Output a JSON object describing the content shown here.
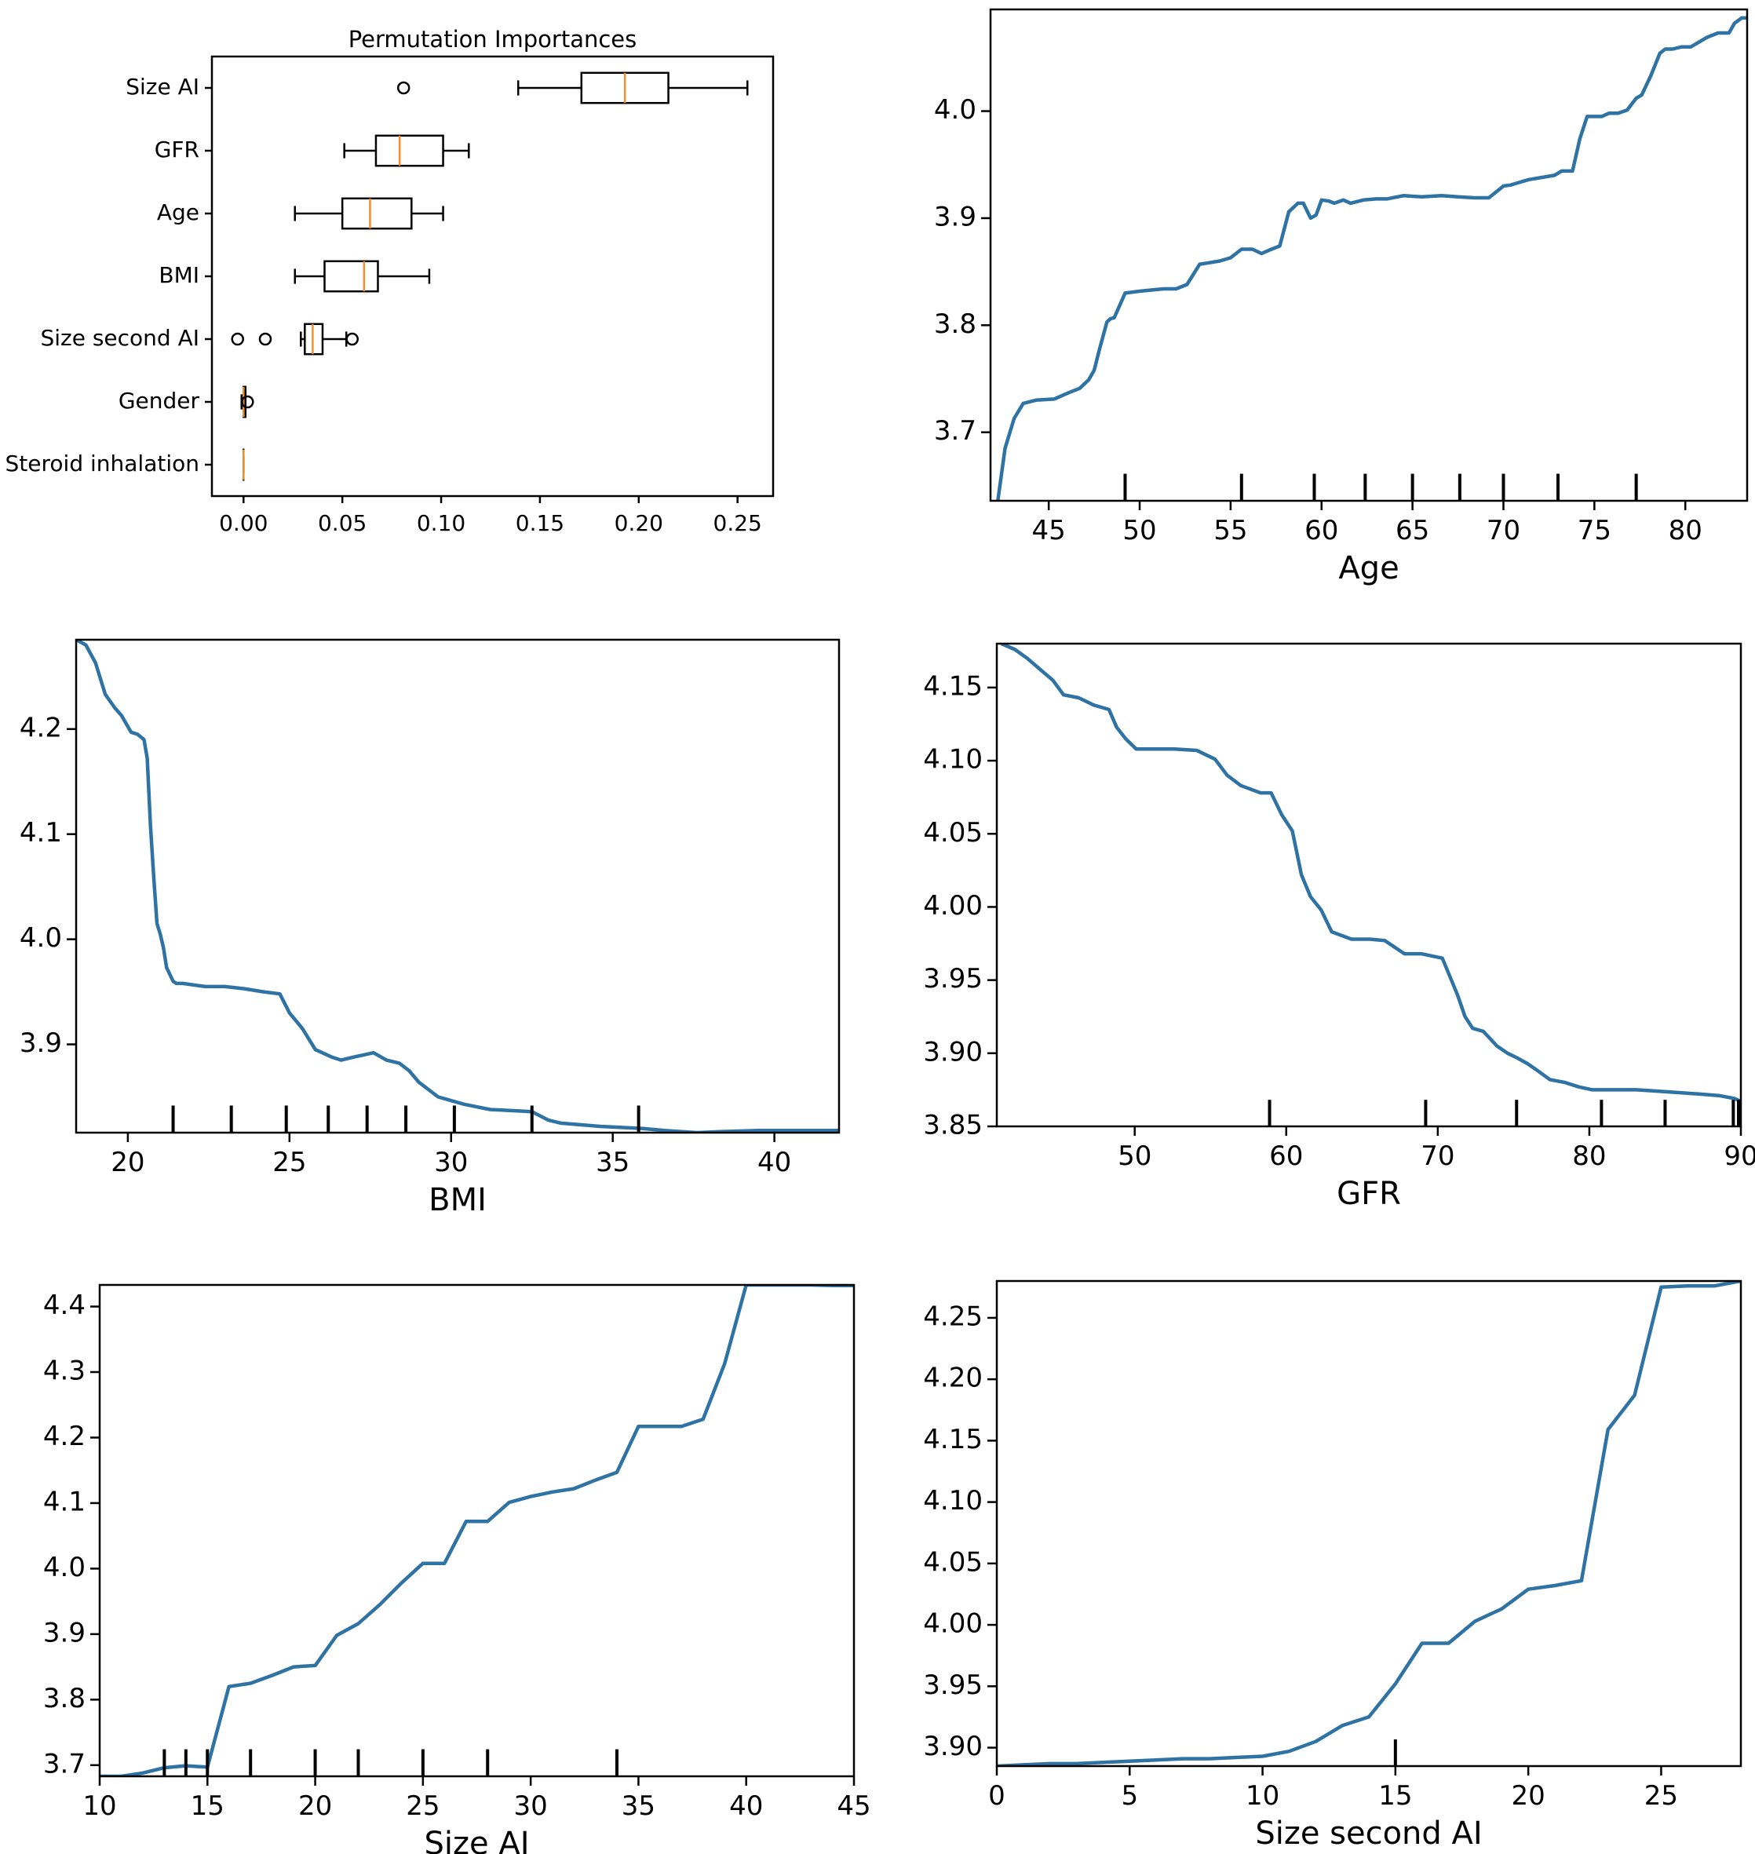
{
  "colors": {
    "line": "#2e73a4",
    "median": "#f28e2b",
    "axis": "#000000"
  },
  "chart_data": [
    {
      "type": "box",
      "title": "Permutation Importances",
      "categories": [
        "Size AI",
        "GFR",
        "Age",
        "BMI",
        "Size second AI",
        "Gender",
        "Steroid inhalation"
      ],
      "xlim": [
        -0.016,
        0.268
      ],
      "xticks": [
        "0.00",
        "0.05",
        "0.10",
        "0.15",
        "0.20",
        "0.25"
      ],
      "boxes": [
        {
          "label": "Size AI",
          "whisker_low": 0.139,
          "q1": 0.171,
          "median": 0.193,
          "q3": 0.215,
          "whisker_high": 0.255,
          "fliers": [
            0.081
          ]
        },
        {
          "label": "GFR",
          "whisker_low": 0.051,
          "q1": 0.067,
          "median": 0.079,
          "q3": 0.101,
          "whisker_high": 0.114,
          "fliers": []
        },
        {
          "label": "Age",
          "whisker_low": 0.026,
          "q1": 0.05,
          "median": 0.064,
          "q3": 0.085,
          "whisker_high": 0.101,
          "fliers": []
        },
        {
          "label": "BMI",
          "whisker_low": 0.026,
          "q1": 0.041,
          "median": 0.061,
          "q3": 0.068,
          "whisker_high": 0.094,
          "fliers": []
        },
        {
          "label": "Size second AI",
          "whisker_low": 0.029,
          "q1": 0.031,
          "median": 0.035,
          "q3": 0.04,
          "whisker_high": 0.052,
          "fliers": [
            -0.003,
            0.011,
            0.055
          ]
        },
        {
          "label": "Gender",
          "whisker_low": -0.001,
          "q1": 0.0,
          "median": 0.0,
          "q3": 0.001,
          "whisker_high": 0.001,
          "fliers": [
            0.002
          ]
        },
        {
          "label": "Steroid inhalation",
          "whisker_low": 0.0,
          "q1": 0.0,
          "median": 0.0,
          "q3": 0.0,
          "whisker_high": 0.0,
          "fliers": []
        }
      ]
    },
    {
      "type": "line",
      "xlabel": "Age",
      "ylabel": "",
      "xlim": [
        41.8,
        83.4
      ],
      "ylim": [
        3.636,
        4.095
      ],
      "xticks": [
        "45",
        "50",
        "55",
        "60",
        "65",
        "70",
        "75",
        "80"
      ],
      "yticks": [
        "3.7",
        "3.8",
        "3.9",
        "4.0"
      ],
      "x": [
        42.2,
        42.6,
        43.1,
        43.6,
        44.3,
        45.3,
        46.1,
        46.7,
        47.2,
        47.5,
        47.8,
        48.2,
        48.4,
        48.6,
        49.2,
        50.1,
        51.3,
        52.0,
        52.6,
        53.3,
        53.7,
        54.4,
        55.0,
        55.6,
        56.2,
        56.7,
        57.1,
        57.7,
        58.2,
        58.7,
        59.0,
        59.4,
        59.7,
        60.0,
        60.4,
        60.7,
        61.2,
        61.6,
        62.3,
        63.0,
        63.6,
        64.5,
        65.5,
        66.6,
        67.5,
        68.4,
        69.2,
        70.0,
        70.4,
        70.8,
        71.4,
        72.1,
        72.8,
        73.2,
        73.8,
        74.2,
        74.6,
        74.9,
        75.4,
        75.8,
        76.3,
        76.8,
        77.3,
        77.6,
        78.1,
        78.6,
        78.9,
        79.3,
        79.8,
        80.3,
        80.8,
        81.2,
        81.8,
        82.4,
        82.7,
        83.1,
        83.4
      ],
      "y": [
        3.636,
        3.685,
        3.713,
        3.727,
        3.73,
        3.731,
        3.737,
        3.741,
        3.749,
        3.758,
        3.778,
        3.803,
        3.806,
        3.807,
        3.83,
        3.832,
        3.834,
        3.834,
        3.838,
        3.857,
        3.858,
        3.86,
        3.863,
        3.871,
        3.871,
        3.867,
        3.87,
        3.874,
        3.906,
        3.914,
        3.914,
        3.9,
        3.903,
        3.917,
        3.916,
        3.914,
        3.917,
        3.914,
        3.917,
        3.918,
        3.918,
        3.921,
        3.92,
        3.921,
        3.92,
        3.919,
        3.919,
        3.93,
        3.931,
        3.933,
        3.936,
        3.938,
        3.94,
        3.944,
        3.944,
        3.974,
        3.995,
        3.995,
        3.995,
        3.998,
        3.998,
        4.001,
        4.012,
        4.015,
        4.033,
        4.054,
        4.058,
        4.058,
        4.06,
        4.06,
        4.065,
        4.069,
        4.073,
        4.073,
        4.082,
        4.087,
        4.087
      ],
      "rug": [
        49.2,
        55.6,
        59.6,
        62.4,
        65.0,
        67.6,
        70.0,
        73.0,
        77.3
      ]
    },
    {
      "type": "line",
      "xlabel": "BMI",
      "ylabel": "",
      "xlim": [
        18.4,
        42.0
      ],
      "ylim": [
        3.816,
        4.285
      ],
      "xticks": [
        "20",
        "25",
        "30",
        "35",
        "40"
      ],
      "yticks": [
        "3.9",
        "4.0",
        "4.1",
        "4.2"
      ],
      "x": [
        18.4,
        18.7,
        19.0,
        19.3,
        19.6,
        19.8,
        20.1,
        20.3,
        20.5,
        20.6,
        20.7,
        20.8,
        20.9,
        21.0,
        21.1,
        21.2,
        21.4,
        21.5,
        21.7,
        22.4,
        23.0,
        23.6,
        24.2,
        24.7,
        25.0,
        25.4,
        25.8,
        26.3,
        26.6,
        27.0,
        27.3,
        27.6,
        28.0,
        28.4,
        28.7,
        29.0,
        29.6,
        30.4,
        31.2,
        32.5,
        33.0,
        33.4,
        34.6,
        35.9,
        36.6,
        37.6,
        38.3,
        39.5,
        40.7,
        42.0
      ],
      "y": [
        4.285,
        4.28,
        4.263,
        4.233,
        4.22,
        4.213,
        4.197,
        4.195,
        4.19,
        4.172,
        4.108,
        4.06,
        4.015,
        4.005,
        3.992,
        3.973,
        3.96,
        3.958,
        3.958,
        3.955,
        3.955,
        3.953,
        3.95,
        3.948,
        3.93,
        3.915,
        3.895,
        3.888,
        3.885,
        3.888,
        3.89,
        3.892,
        3.885,
        3.882,
        3.875,
        3.864,
        3.85,
        3.843,
        3.838,
        3.836,
        3.828,
        3.825,
        3.822,
        3.82,
        3.818,
        3.816,
        3.817,
        3.818,
        3.818,
        3.818
      ],
      "rug": [
        21.4,
        23.2,
        24.9,
        26.2,
        27.4,
        28.6,
        30.1,
        32.5,
        35.8
      ]
    },
    {
      "type": "line",
      "xlabel": "GFR",
      "ylabel": "",
      "xlim": [
        40.9,
        90.0
      ],
      "ylim": [
        3.85,
        4.18
      ],
      "xticks": [
        "50",
        "60",
        "70",
        "80",
        "90"
      ],
      "yticks": [
        "3.85",
        "3.90",
        "3.95",
        "4.00",
        "4.05",
        "4.10",
        "4.15"
      ],
      "x": [
        41.2,
        42.1,
        42.9,
        43.8,
        44.6,
        45.3,
        46.3,
        47.3,
        48.3,
        48.8,
        49.4,
        50.1,
        51.0,
        52.6,
        54.1,
        55.3,
        56.1,
        57.0,
        58.3,
        59.0,
        59.7,
        60.4,
        61.0,
        61.6,
        62.3,
        63.0,
        64.3,
        65.5,
        66.5,
        67.8,
        68.9,
        70.3,
        71.3,
        71.8,
        72.3,
        73.0,
        73.9,
        74.6,
        75.2,
        75.9,
        76.6,
        77.4,
        78.4,
        79.3,
        80.2,
        81.5,
        83.1,
        84.6,
        86.0,
        87.4,
        88.6,
        89.6,
        90.0
      ],
      "y": [
        4.18,
        4.176,
        4.17,
        4.162,
        4.155,
        4.145,
        4.143,
        4.138,
        4.135,
        4.123,
        4.115,
        4.108,
        4.108,
        4.108,
        4.107,
        4.101,
        4.09,
        4.083,
        4.078,
        4.078,
        4.063,
        4.052,
        4.022,
        4.007,
        3.998,
        3.983,
        3.978,
        3.978,
        3.977,
        3.968,
        3.968,
        3.965,
        3.94,
        3.925,
        3.917,
        3.915,
        3.905,
        3.9,
        3.897,
        3.893,
        3.888,
        3.882,
        3.88,
        3.877,
        3.875,
        3.875,
        3.875,
        3.874,
        3.873,
        3.872,
        3.871,
        3.869,
        3.867
      ],
      "rug": [
        58.9,
        69.2,
        75.2,
        80.8,
        85.0,
        89.5,
        90.0
      ]
    },
    {
      "type": "line",
      "xlabel": "Size AI",
      "ylabel": "",
      "xlim": [
        10,
        45
      ],
      "ylim": [
        3.683,
        4.433
      ],
      "xticks": [
        "10",
        "15",
        "20",
        "25",
        "30",
        "35",
        "40",
        "45"
      ],
      "yticks": [
        "3.7",
        "3.8",
        "3.9",
        "4.0",
        "4.1",
        "4.2",
        "4.3",
        "4.4"
      ],
      "x": [
        10,
        11,
        12,
        13,
        14,
        15,
        16,
        17,
        18,
        19,
        20,
        21,
        22,
        23,
        24,
        25,
        26,
        27,
        28,
        29,
        30,
        31,
        32,
        33,
        34,
        35,
        36,
        37,
        38,
        39,
        40,
        41,
        42,
        43,
        44,
        45
      ],
      "y": [
        3.683,
        3.683,
        3.688,
        3.696,
        3.699,
        3.697,
        3.82,
        3.825,
        3.837,
        3.85,
        3.852,
        3.898,
        3.916,
        3.945,
        3.978,
        4.008,
        4.008,
        4.072,
        4.072,
        4.101,
        4.11,
        4.117,
        4.122,
        4.135,
        4.147,
        4.217,
        4.217,
        4.217,
        4.228,
        4.313,
        4.433,
        4.433,
        4.433,
        4.433,
        4.432,
        4.432
      ],
      "rug": [
        13.0,
        14.0,
        15.0,
        17.0,
        20.0,
        22.0,
        25.0,
        28.0,
        34.0
      ]
    },
    {
      "type": "line",
      "xlabel": "Size second AI",
      "ylabel": "",
      "xlim": [
        0,
        28
      ],
      "ylim": [
        3.885,
        4.28
      ],
      "xticks": [
        "0",
        "5",
        "10",
        "15",
        "20",
        "25"
      ],
      "yticks": [
        "3.90",
        "3.95",
        "4.00",
        "4.05",
        "4.10",
        "4.15",
        "4.20",
        "4.25"
      ],
      "x": [
        0,
        1,
        2,
        3,
        4,
        5,
        6,
        7,
        8,
        9,
        10,
        11,
        12,
        13,
        14,
        15,
        16,
        17,
        18,
        19,
        20,
        21,
        22,
        23,
        24,
        25,
        26,
        27,
        28
      ],
      "y": [
        3.885,
        3.886,
        3.887,
        3.887,
        3.888,
        3.889,
        3.89,
        3.891,
        3.891,
        3.892,
        3.893,
        3.897,
        3.905,
        3.918,
        3.925,
        3.952,
        3.985,
        3.985,
        4.003,
        4.013,
        4.029,
        4.032,
        4.036,
        4.159,
        4.187,
        4.275,
        4.276,
        4.276,
        4.28
      ],
      "rug": [
        15.0
      ]
    }
  ]
}
